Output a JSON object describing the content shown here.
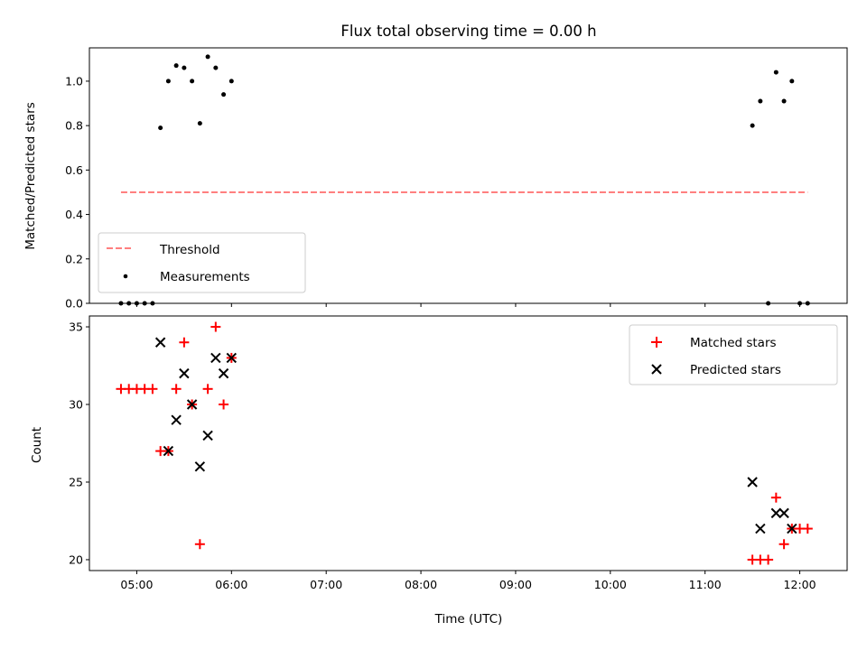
{
  "chart_data": [
    {
      "type": "scatter",
      "panel": "top",
      "title": "Flux total observing time = 0.00 h",
      "ylabel": "Matched/Predicted stars",
      "ylim": [
        0.0,
        1.15
      ],
      "yticks": [
        0.0,
        0.2,
        0.4,
        0.6,
        0.8,
        1.0
      ],
      "ytick_labels": [
        "0.0",
        "0.2",
        "0.4",
        "0.6",
        "0.8",
        "1.0"
      ],
      "grid": false,
      "legend_position": "lower-left",
      "series": [
        {
          "name": "Threshold",
          "kind": "dashed-line",
          "color": "#ff7f7f",
          "x": [
            "04:50",
            "12:05"
          ],
          "y": [
            0.5,
            0.5
          ]
        },
        {
          "name": "Measurements",
          "kind": "dot",
          "color": "#000000",
          "x": [
            "04:50",
            "04:55",
            "05:00",
            "05:05",
            "05:10",
            "05:15",
            "05:20",
            "05:25",
            "05:30",
            "05:35",
            "05:40",
            "05:45",
            "05:50",
            "05:55",
            "06:00",
            "11:30",
            "11:35",
            "11:40",
            "11:45",
            "11:50",
            "11:55",
            "12:00",
            "12:05"
          ],
          "y": [
            0.0,
            0.0,
            0.0,
            0.0,
            0.0,
            0.79,
            1.0,
            1.07,
            1.06,
            1.0,
            0.81,
            1.11,
            1.06,
            0.94,
            1.0,
            0.8,
            0.91,
            0.0,
            1.04,
            0.91,
            1.0,
            0.0,
            0.0
          ]
        }
      ]
    },
    {
      "type": "scatter",
      "panel": "bottom",
      "xlabel": "Time (UTC)",
      "ylabel": "Count",
      "xlim": [
        "04:30",
        "12:30"
      ],
      "ylim": [
        19.3,
        35.7
      ],
      "xticks": [
        "05:00",
        "06:00",
        "07:00",
        "08:00",
        "09:00",
        "10:00",
        "11:00",
        "12:00"
      ],
      "yticks": [
        20,
        25,
        30,
        35
      ],
      "ytick_labels": [
        "20",
        "25",
        "30",
        "35"
      ],
      "grid": false,
      "legend_position": "upper-right",
      "series": [
        {
          "name": "Matched stars",
          "marker": "plus",
          "color": "#ff0000",
          "x": [
            "04:50",
            "04:55",
            "05:00",
            "05:05",
            "05:10",
            "05:15",
            "05:20",
            "05:25",
            "05:30",
            "05:35",
            "05:40",
            "05:45",
            "05:50",
            "05:55",
            "06:00",
            "11:30",
            "11:35",
            "11:40",
            "11:45",
            "11:50",
            "11:55",
            "12:00",
            "12:05"
          ],
          "y": [
            31,
            31,
            31,
            31,
            31,
            27,
            27,
            31,
            34,
            30,
            21,
            31,
            35,
            30,
            33,
            20,
            20,
            20,
            24,
            21,
            22,
            22,
            22
          ]
        },
        {
          "name": "Predicted stars",
          "marker": "x",
          "color": "#000000",
          "x": [
            "05:15",
            "05:20",
            "05:25",
            "05:30",
            "05:35",
            "05:40",
            "05:45",
            "05:50",
            "05:55",
            "06:00",
            "11:30",
            "11:35",
            "11:45",
            "11:50",
            "11:55"
          ],
          "y": [
            34,
            27,
            29,
            32,
            30,
            26,
            28,
            33,
            32,
            33,
            25,
            22,
            23,
            23,
            22
          ]
        }
      ]
    }
  ]
}
